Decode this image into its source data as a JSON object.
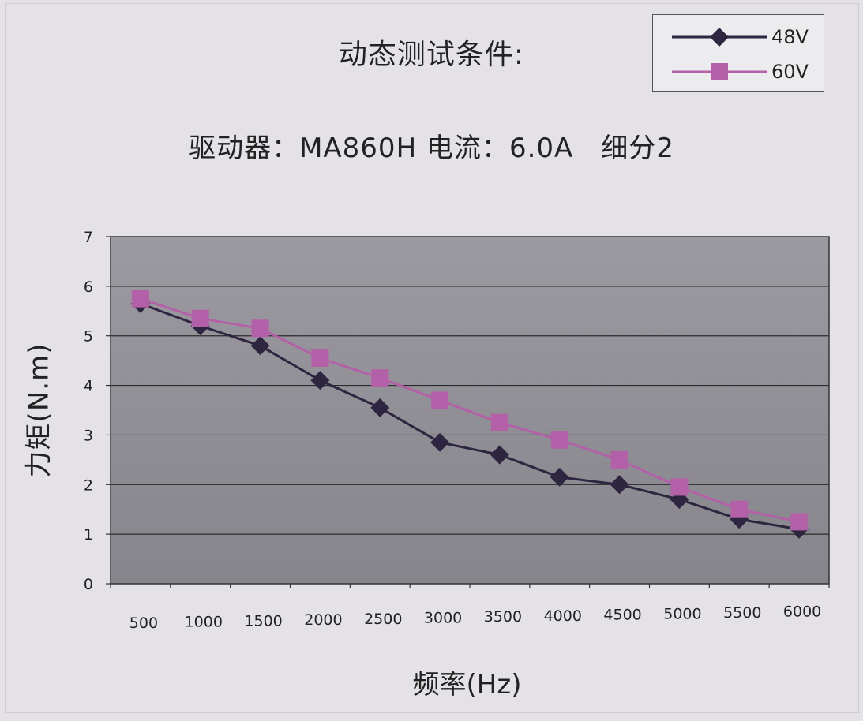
{
  "chart_data": {
    "type": "line",
    "title": "动态测试条件:",
    "subtitle": "驱动器：MA860H 电流：6.0A　细分2",
    "xlabel": "频率(Hz)",
    "ylabel": "力矩(N.m)",
    "ylim": [
      0,
      7
    ],
    "yticks": [
      "0",
      "1",
      "2",
      "3",
      "4",
      "5",
      "6",
      "7"
    ],
    "categories": [
      "500",
      "1000",
      "1500",
      "2000",
      "2500",
      "3000",
      "3500",
      "4000",
      "4500",
      "5000",
      "5500",
      "6000"
    ],
    "grid": true,
    "legend_position": "top-right",
    "series": [
      {
        "name": "48V",
        "marker": "diamond",
        "color": "#2e2640",
        "values": [
          5.65,
          5.2,
          4.8,
          4.1,
          3.55,
          2.85,
          2.6,
          2.15,
          2.0,
          1.7,
          1.3,
          1.1
        ]
      },
      {
        "name": "60V",
        "marker": "square",
        "color": "#b460a8",
        "values": [
          5.75,
          5.35,
          5.15,
          4.55,
          4.15,
          3.7,
          3.25,
          2.9,
          2.5,
          1.95,
          1.5,
          1.25
        ]
      }
    ]
  }
}
